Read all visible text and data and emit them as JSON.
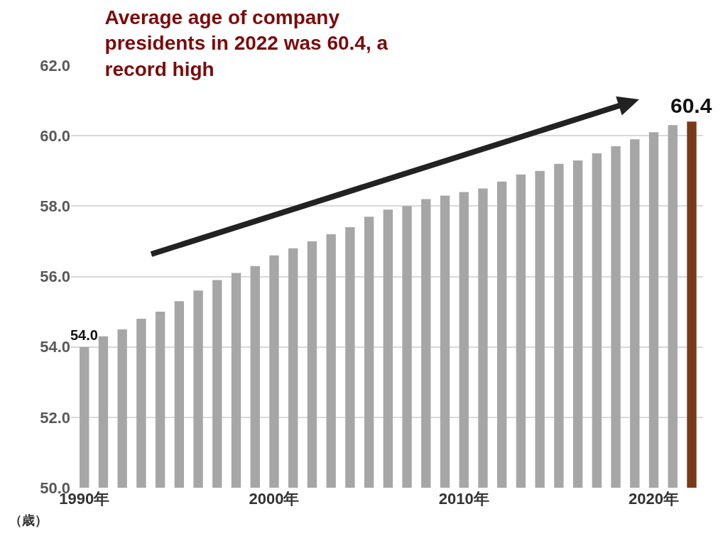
{
  "chart_data": {
    "type": "bar",
    "title": "Average age of company presidents in 2022 was 60.4, a record high",
    "ylabel": "（歳）",
    "categories": [
      "1990年",
      null,
      null,
      null,
      null,
      null,
      null,
      null,
      null,
      null,
      "2000年",
      null,
      null,
      null,
      null,
      null,
      null,
      null,
      null,
      null,
      "2010年",
      null,
      null,
      null,
      null,
      null,
      null,
      null,
      null,
      null,
      "2020年",
      null,
      null
    ],
    "values": [
      54.0,
      54.3,
      54.5,
      54.8,
      55.0,
      55.3,
      55.6,
      55.9,
      56.1,
      56.3,
      56.6,
      56.8,
      57.0,
      57.2,
      57.4,
      57.7,
      57.9,
      58.0,
      58.2,
      58.3,
      58.4,
      58.5,
      58.7,
      58.9,
      59.0,
      59.2,
      59.3,
      59.5,
      59.7,
      59.9,
      60.1,
      60.3,
      60.4
    ],
    "colors": [
      "#a6a6a6",
      "#a6a6a6",
      "#a6a6a6",
      "#a6a6a6",
      "#a6a6a6",
      "#a6a6a6",
      "#a6a6a6",
      "#a6a6a6",
      "#a6a6a6",
      "#a6a6a6",
      "#a6a6a6",
      "#a6a6a6",
      "#a6a6a6",
      "#a6a6a6",
      "#a6a6a6",
      "#a6a6a6",
      "#a6a6a6",
      "#a6a6a6",
      "#a6a6a6",
      "#a6a6a6",
      "#a6a6a6",
      "#a6a6a6",
      "#a6a6a6",
      "#a6a6a6",
      "#a6a6a6",
      "#a6a6a6",
      "#a6a6a6",
      "#a6a6a6",
      "#a6a6a6",
      "#a6a6a6",
      "#a6a6a6",
      "#a6a6a6",
      "#7a3a17"
    ],
    "value_labels": [
      "54.0",
      null,
      null,
      null,
      null,
      null,
      null,
      null,
      null,
      null,
      null,
      null,
      null,
      null,
      null,
      null,
      null,
      null,
      null,
      null,
      null,
      null,
      null,
      null,
      null,
      null,
      null,
      null,
      null,
      null,
      null,
      null,
      "60.4"
    ],
    "ylim": [
      50,
      62
    ],
    "yticks": [
      {
        "value": 50,
        "label": "50.0"
      },
      {
        "value": 52,
        "label": "52.0"
      },
      {
        "value": 54,
        "label": "54.0"
      },
      {
        "value": 56,
        "label": "56.0"
      },
      {
        "value": 58,
        "label": "58.0"
      },
      {
        "value": 60,
        "label": "60.0"
      },
      {
        "value": 62,
        "label": "62.0"
      }
    ],
    "grid": "y",
    "legend": false
  }
}
